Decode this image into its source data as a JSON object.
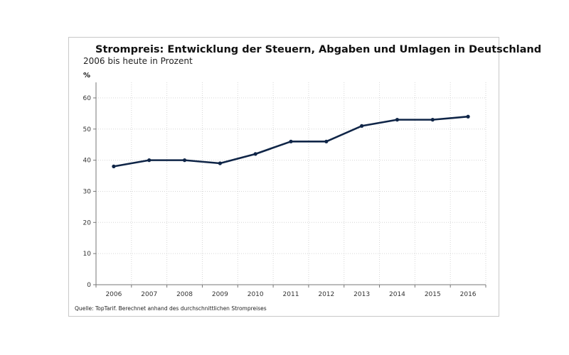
{
  "chart_data": {
    "type": "line",
    "title": "Strompreis: Entwicklung der Steuern, Abgaben und Umlagen in Deutschland",
    "subtitle": "2006 bis heute in Prozent",
    "ylabel": "%",
    "xlabel": "",
    "categories": [
      "2006",
      "2007",
      "2008",
      "2009",
      "2010",
      "2011",
      "2012",
      "2013",
      "2014",
      "2015",
      "2016"
    ],
    "series": [
      {
        "values": [
          38,
          40,
          40,
          39,
          42,
          46,
          46,
          51,
          53,
          53,
          54
        ]
      }
    ],
    "ylim": [
      0,
      65
    ],
    "yticks": [
      "0",
      "10",
      "20",
      "30",
      "40",
      "50",
      "60"
    ],
    "grid": true,
    "line_color": "#0f2547",
    "source": "Quelle: TopTarif. Berechnet anhand des durchschnittlichen Strompreises"
  }
}
